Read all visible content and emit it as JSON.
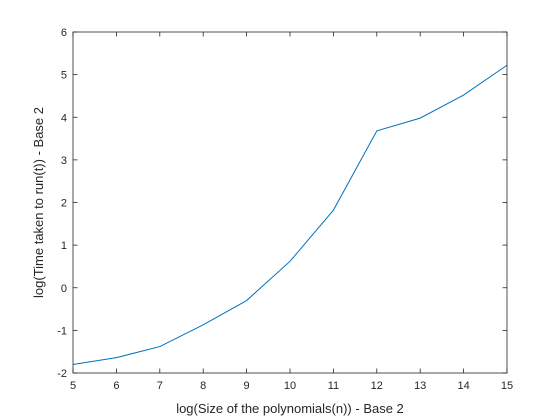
{
  "chart_data": {
    "type": "line",
    "title": "",
    "xlabel": "log(Size of the polynomials(n)) - Base 2",
    "ylabel": "log(Time taken to run(t)) - Base 2",
    "xlim": [
      5,
      15
    ],
    "ylim": [
      -2,
      6
    ],
    "xticks": [
      5,
      6,
      7,
      8,
      9,
      10,
      11,
      12,
      13,
      14,
      15
    ],
    "yticks": [
      -2,
      -1,
      0,
      1,
      2,
      3,
      4,
      5,
      6
    ],
    "grid": false,
    "legend": "none",
    "series": [
      {
        "color": "#0072BD",
        "x": [
          5,
          6,
          7,
          8,
          9,
          10,
          11,
          12,
          13,
          14,
          15
        ],
        "y": [
          -1.8,
          -1.64,
          -1.38,
          -0.87,
          -0.3,
          0.62,
          1.82,
          3.68,
          3.98,
          4.52,
          5.22
        ]
      }
    ]
  }
}
